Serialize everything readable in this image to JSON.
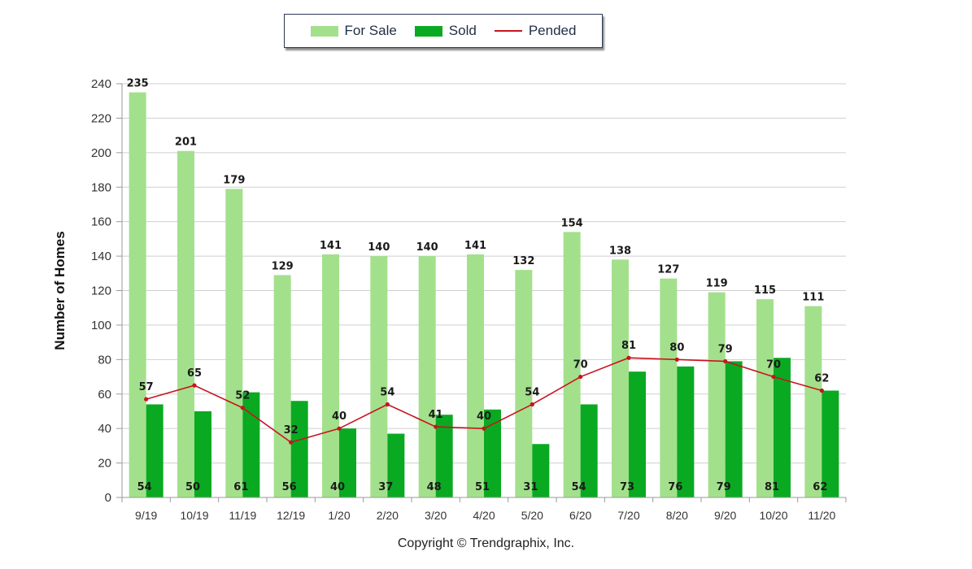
{
  "colors": {
    "for_sale": "#a3e08c",
    "sold": "#09aa22",
    "pended": "#c8141e",
    "grid": "#cfcfcf",
    "axis": "#9a9a9a"
  },
  "legend": {
    "items": [
      {
        "label": "For Sale",
        "kind": "bar",
        "color": "#a3e08c"
      },
      {
        "label": "Sold",
        "kind": "bar",
        "color": "#09aa22"
      },
      {
        "label": "Pended",
        "kind": "line",
        "color": "#c8141e"
      }
    ]
  },
  "copyright": "Copyright © Trendgraphix, Inc.",
  "chart_data": {
    "type": "bar",
    "categories": [
      "9/19",
      "10/19",
      "11/19",
      "12/19",
      "1/20",
      "2/20",
      "3/20",
      "4/20",
      "5/20",
      "6/20",
      "7/20",
      "8/20",
      "9/20",
      "10/20",
      "11/20"
    ],
    "series": [
      {
        "name": "For Sale",
        "type": "bar",
        "values": [
          235,
          201,
          179,
          129,
          141,
          140,
          140,
          141,
          132,
          154,
          138,
          127,
          119,
          115,
          111
        ]
      },
      {
        "name": "Sold",
        "type": "bar",
        "values": [
          54,
          50,
          61,
          56,
          40,
          37,
          48,
          51,
          31,
          54,
          73,
          76,
          79,
          81,
          62
        ]
      },
      {
        "name": "Pended",
        "type": "line",
        "values": [
          57,
          65,
          52,
          32,
          40,
          54,
          41,
          40,
          54,
          70,
          81,
          80,
          79,
          70,
          62
        ]
      }
    ],
    "xlabel": "",
    "ylabel": "Number of Homes",
    "ylim": [
      0,
      240
    ],
    "yticks": [
      0,
      20,
      40,
      60,
      80,
      100,
      120,
      140,
      160,
      180,
      200,
      220,
      240
    ],
    "grid": true,
    "legend_position": "top"
  }
}
